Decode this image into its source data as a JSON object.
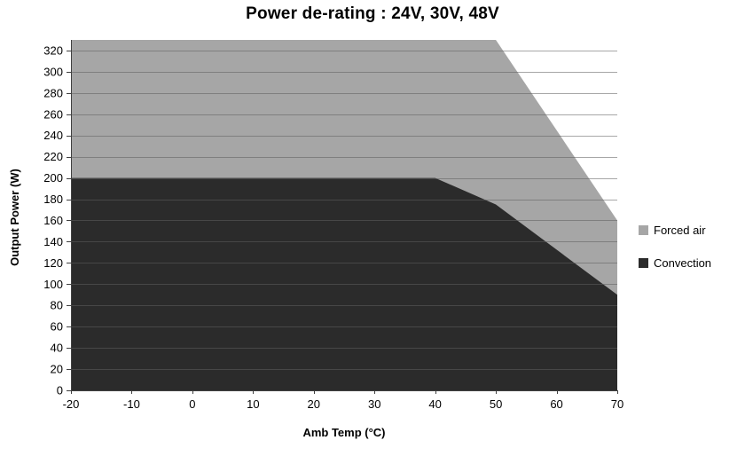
{
  "chart_data": {
    "type": "area",
    "title": "Power de-rating : 24V, 30V, 48V",
    "xlabel": "Amb Temp (°C)",
    "ylabel": "Output Power (W)",
    "xlim": [
      -20,
      70
    ],
    "ylim": [
      0,
      330
    ],
    "x_ticks": [
      -20,
      -10,
      0,
      10,
      20,
      30,
      40,
      50,
      60,
      70
    ],
    "y_ticks": [
      0,
      20,
      40,
      60,
      80,
      100,
      120,
      140,
      160,
      180,
      200,
      220,
      240,
      260,
      280,
      300,
      320
    ],
    "grid": "horizontal",
    "legend_position": "right",
    "colors": {
      "axis": "#404040",
      "gridline": "rgba(95,95,95,0.55)",
      "background": "#ffffff"
    },
    "series": [
      {
        "name": "Forced air",
        "color": "#a6a6a6",
        "points": [
          [
            -20,
            330
          ],
          [
            50,
            330
          ],
          [
            70,
            160
          ]
        ]
      },
      {
        "name": "Convection",
        "color": "#2b2b2b",
        "points": [
          [
            -20,
            200
          ],
          [
            40,
            200
          ],
          [
            50,
            175
          ],
          [
            70,
            90
          ]
        ]
      }
    ]
  }
}
